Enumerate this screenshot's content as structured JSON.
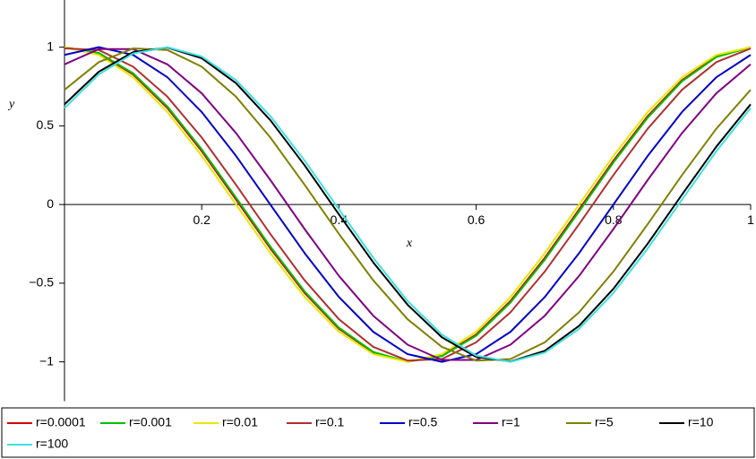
{
  "chart_data": {
    "type": "line",
    "x_label": "x",
    "y_label": "y",
    "x": [
      0,
      0.05,
      0.1,
      0.15,
      0.2,
      0.25,
      0.3,
      0.35,
      0.4,
      0.45,
      0.5,
      0.55,
      0.6,
      0.65,
      0.7,
      0.75,
      0.8,
      0.85,
      0.9,
      0.95,
      1
    ],
    "xlim": [
      0,
      1
    ],
    "ylim": [
      -1.25,
      1.3
    ],
    "xticks": [
      0.2,
      0.4,
      0.6,
      0.8,
      1
    ],
    "yticks": [
      {
        "value": -1,
        "label": "−1"
      },
      {
        "value": -0.5,
        "label": "−0.5"
      },
      0,
      0.5,
      1
    ],
    "series": [
      {
        "name": "r=0.0001",
        "color": "#d40000",
        "values": [
          1.0,
          0.96,
          0.827,
          0.613,
          0.339,
          0.031,
          -0.279,
          -0.562,
          -0.79,
          -0.941,
          -1.0,
          -0.96,
          -0.827,
          -0.613,
          -0.339,
          -0.031,
          0.279,
          0.562,
          0.79,
          0.941,
          1.0
        ]
      },
      {
        "name": "r=0.001",
        "color": "#00c000",
        "values": [
          0.999,
          0.964,
          0.834,
          0.623,
          0.351,
          0.044,
          -0.267,
          -0.552,
          -0.783,
          -0.937,
          -0.999,
          -0.964,
          -0.834,
          -0.623,
          -0.351,
          -0.044,
          0.267,
          0.552,
          0.783,
          0.937,
          0.999
        ]
      },
      {
        "name": "r=0.01",
        "color": "#e8e800",
        "values": [
          1,
          0.951,
          0.809,
          0.588,
          0.309,
          0,
          -0.309,
          -0.588,
          -0.809,
          -0.951,
          -1,
          -0.951,
          -0.809,
          -0.588,
          -0.309,
          0,
          0.309,
          0.588,
          0.809,
          0.951,
          1
        ]
      },
      {
        "name": "r=0.1",
        "color": "#b03030",
        "values": [
          0.992,
          0.982,
          0.876,
          0.685,
          0.426,
          0.125,
          -0.187,
          -0.482,
          -0.729,
          -0.905,
          -0.992,
          -0.982,
          -0.876,
          -0.685,
          -0.426,
          -0.125,
          0.187,
          0.482,
          0.729,
          0.905,
          0.992
        ]
      },
      {
        "name": "r=0.5",
        "color": "#0000c8",
        "values": [
          0.951,
          1,
          0.951,
          0.809,
          0.588,
          0.309,
          0,
          -0.309,
          -0.588,
          -0.809,
          -0.951,
          -1,
          -0.951,
          -0.809,
          -0.588,
          -0.309,
          0,
          0.309,
          0.588,
          0.809,
          0.951
        ]
      },
      {
        "name": "r=1",
        "color": "#800080",
        "values": [
          0.891,
          0.988,
          0.988,
          0.891,
          0.707,
          0.454,
          0.156,
          -0.156,
          -0.454,
          -0.707,
          -0.891,
          -0.988,
          -0.988,
          -0.891,
          -0.707,
          -0.454,
          -0.156,
          0.156,
          0.454,
          0.707,
          0.891
        ]
      },
      {
        "name": "r=5",
        "color": "#808000",
        "values": [
          0.729,
          0.905,
          0.992,
          0.982,
          0.876,
          0.685,
          0.426,
          0.125,
          -0.187,
          -0.482,
          -0.729,
          -0.905,
          -0.992,
          -0.982,
          -0.876,
          -0.685,
          -0.426,
          -0.125,
          0.187,
          0.482,
          0.729
        ]
      },
      {
        "name": "r=10",
        "color": "#000000",
        "values": [
          0.637,
          0.844,
          0.969,
          0.998,
          0.93,
          0.771,
          0.536,
          0.249,
          -0.063,
          -0.368,
          -0.637,
          -0.844,
          -0.969,
          -0.998,
          -0.93,
          -0.771,
          -0.536,
          -0.249,
          0.063,
          0.368,
          0.637
        ]
      },
      {
        "name": "r=100",
        "color": "#40e0e0",
        "values": [
          0.613,
          0.827,
          0.96,
          1.0,
          0.941,
          0.79,
          0.562,
          0.279,
          -0.031,
          -0.339,
          -0.613,
          -0.827,
          -0.96,
          -1.0,
          -0.941,
          -0.79,
          -0.562,
          -0.279,
          0.031,
          0.339,
          0.613
        ]
      }
    ]
  }
}
